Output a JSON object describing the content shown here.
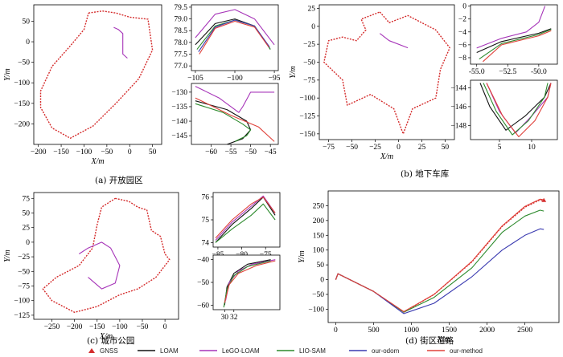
{
  "series_colors": {
    "GNSS": "#d42b2b",
    "LOAM": "#111111",
    "LeGO-LOAM": "#a634b8",
    "LIO-SAM": "#2c8a2c",
    "our-odom": "#3a3ab0",
    "our-method": "#e0413a"
  },
  "legend": {
    "entries": [
      {
        "name": "GNSS",
        "marker": "triangle"
      },
      {
        "name": "LOAM",
        "marker": "line"
      },
      {
        "name": "LeGO-LOAM",
        "marker": "line"
      },
      {
        "name": "LIO-SAM",
        "marker": "line"
      },
      {
        "name": "our-odom",
        "marker": "line"
      },
      {
        "name": "our-method",
        "marker": "line"
      }
    ]
  },
  "captions": {
    "a": "(a) 开放园区",
    "b": "(b) 地下车库",
    "c": "(c) 城市公园",
    "d": "(d) 街区道路"
  },
  "chart_data": [
    {
      "id": "a-main",
      "type": "line",
      "xlabel": "X/m",
      "ylabel": "Y/m",
      "xlim": [
        -210,
        70
      ],
      "ylim": [
        -250,
        90
      ],
      "xticks": [
        -200,
        -150,
        -100,
        -50,
        0,
        50
      ],
      "yticks": [
        50,
        0,
        -50,
        -100,
        -150,
        -200
      ],
      "series": [
        {
          "name": "GNSS",
          "x": [
            -90,
            -60,
            -30,
            0,
            40,
            50,
            20,
            -30,
            -80,
            -130,
            -170,
            -195,
            -195,
            -170,
            -130,
            -100,
            -90
          ],
          "y": [
            70,
            75,
            70,
            60,
            55,
            -20,
            -90,
            -150,
            -205,
            -235,
            -210,
            -160,
            -120,
            -60,
            -10,
            30,
            70
          ]
        },
        {
          "name": "LeGO-LOAM",
          "x": [
            -35,
            -25,
            -15,
            -15,
            -5
          ],
          "y": [
            35,
            30,
            20,
            -30,
            -40
          ]
        }
      ]
    },
    {
      "id": "a-inset-top",
      "type": "line",
      "xlim": [
        -105.5,
        -94.5
      ],
      "ylim": [
        76.8,
        79.6
      ],
      "xticks": [
        -105.0,
        -100.0,
        -95.0
      ],
      "yticks": [
        79.5,
        79.0,
        78.5,
        78.0,
        77.5,
        77.0
      ],
      "series": [
        {
          "name": "LOAM",
          "x": [
            -105,
            -102.5,
            -100,
            -97.5,
            -95.5
          ],
          "y": [
            77.9,
            78.8,
            79.0,
            78.7,
            77.7
          ]
        },
        {
          "name": "LeGO-LOAM",
          "x": [
            -105,
            -102.5,
            -100,
            -97.5,
            -95
          ],
          "y": [
            78.2,
            79.2,
            79.4,
            79.0,
            77.9
          ]
        },
        {
          "name": "LIO-SAM",
          "x": [
            -104.8,
            -102.5,
            -100,
            -97.5,
            -95.5
          ],
          "y": [
            77.7,
            78.7,
            78.95,
            78.7,
            77.7
          ]
        },
        {
          "name": "our-odom",
          "x": [
            -104.6,
            -102.5,
            -100,
            -97.5,
            -95.6
          ],
          "y": [
            77.6,
            78.65,
            78.95,
            78.7,
            77.8
          ]
        },
        {
          "name": "our-method",
          "x": [
            -104.5,
            -102.5,
            -100,
            -97.5,
            -95.7
          ],
          "y": [
            77.5,
            78.6,
            78.9,
            78.65,
            77.8
          ]
        }
      ]
    },
    {
      "id": "a-inset-bottom",
      "type": "line",
      "xlim": [
        -65,
        -43
      ],
      "ylim": [
        -148,
        -127
      ],
      "xticks": [
        -60,
        -55,
        -50,
        -45
      ],
      "yticks": [
        -130,
        -135,
        -140,
        -145
      ],
      "series": [
        {
          "name": "LOAM",
          "x": [
            -64,
            -56,
            -51,
            -50,
            -52,
            -56
          ],
          "y": [
            -133,
            -136,
            -140,
            -143,
            -146,
            -148
          ]
        },
        {
          "name": "LeGO-LOAM",
          "x": [
            -64,
            -58,
            -53,
            -52,
            -50,
            -44
          ],
          "y": [
            -128,
            -132,
            -137,
            -135,
            -130,
            -130
          ]
        },
        {
          "name": "LIO-SAM",
          "x": [
            -64,
            -57,
            -52,
            -50,
            -51,
            -54
          ],
          "y": [
            -134,
            -137,
            -141,
            -143,
            -145,
            -147
          ]
        },
        {
          "name": "our-method",
          "x": [
            -64,
            -55,
            -48,
            -44
          ],
          "y": [
            -132,
            -138,
            -142,
            -147
          ]
        }
      ]
    },
    {
      "id": "b-main",
      "type": "line",
      "xlabel": "X/m",
      "ylabel": "Y/m",
      "xlim": [
        -85,
        60
      ],
      "ylim": [
        -158,
        30
      ],
      "xticks": [
        -75,
        -50,
        -25,
        0,
        25,
        50
      ],
      "yticks": [
        25,
        0,
        -25,
        -50,
        -75,
        -100,
        -125,
        -150
      ],
      "series": [
        {
          "name": "GNSS",
          "x": [
            -20,
            -10,
            10,
            40,
            55,
            45,
            40,
            15,
            5,
            -5,
            -30,
            -55,
            -60,
            -80,
            -75,
            -60,
            -45,
            -35,
            -40,
            -20
          ],
          "y": [
            20,
            5,
            15,
            -5,
            -30,
            -60,
            -100,
            -115,
            -150,
            -115,
            -95,
            -110,
            -75,
            -50,
            -20,
            -15,
            -20,
            -5,
            10,
            20
          ]
        },
        {
          "name": "LeGO-LOAM",
          "x": [
            -20,
            -10,
            10
          ],
          "y": [
            -10,
            -20,
            -30
          ]
        }
      ]
    },
    {
      "id": "b-inset-top",
      "type": "line",
      "xlim": [
        -55.5,
        -48.5
      ],
      "ylim": [
        -9,
        0.2
      ],
      "xticks": [
        -55.0,
        -52.5,
        -50.0
      ],
      "yticks": [
        0,
        -2,
        -4,
        -6,
        -8
      ],
      "series": [
        {
          "name": "LOAM",
          "x": [
            -55,
            -53,
            -50,
            -49
          ],
          "y": [
            -7.2,
            -5.5,
            -4.2,
            -3.5
          ]
        },
        {
          "name": "LeGO-LOAM",
          "x": [
            -55,
            -53,
            -51,
            -50,
            -49.5
          ],
          "y": [
            -6.5,
            -5.0,
            -4.0,
            -2.5,
            0
          ]
        },
        {
          "name": "LIO-SAM",
          "x": [
            -54.8,
            -53,
            -50,
            -49
          ],
          "y": [
            -8.2,
            -5.8,
            -4.4,
            -3.6
          ]
        },
        {
          "name": "our-method",
          "x": [
            -54.5,
            -53,
            -50,
            -49
          ],
          "y": [
            -8.6,
            -6.0,
            -4.6,
            -3.8
          ]
        }
      ]
    },
    {
      "id": "b-inset-bottom",
      "type": "line",
      "xlim": [
        0.5,
        14
      ],
      "ylim": [
        -149.5,
        -143.2
      ],
      "xticks": [
        5,
        10
      ],
      "yticks": [
        -144,
        -146,
        -148
      ],
      "series": [
        {
          "name": "LOAM",
          "x": [
            2,
            3.5,
            6,
            9,
            12,
            13
          ],
          "y": [
            -143.5,
            -146,
            -148.5,
            -147,
            -145,
            -143.5
          ]
        },
        {
          "name": "LeGO-LOAM",
          "x": [
            3,
            5,
            7.5,
            10,
            12.5,
            13
          ],
          "y": [
            -143.5,
            -146.5,
            -148.8,
            -147,
            -145,
            -143.5
          ]
        },
        {
          "name": "LIO-SAM",
          "x": [
            2.5,
            4.5,
            7,
            9.5,
            12,
            12.5
          ],
          "y": [
            -143.5,
            -146.5,
            -149,
            -147.5,
            -145,
            -143.5
          ]
        },
        {
          "name": "our-method",
          "x": [
            3,
            5.5,
            8,
            10.5,
            12.5,
            13
          ],
          "y": [
            -143.5,
            -147,
            -149.2,
            -147.5,
            -145,
            -143.5
          ]
        }
      ]
    },
    {
      "id": "c-main",
      "type": "line",
      "xlabel": "X/m",
      "ylabel": "Y/m",
      "xlim": [
        -290,
        30
      ],
      "ylim": [
        -132,
        85
      ],
      "xticks": [
        -250,
        -200,
        -150,
        -100,
        -50,
        0
      ],
      "yticks": [
        75,
        50,
        25,
        0,
        -25,
        -50,
        -75,
        -100,
        -125
      ],
      "series": [
        {
          "name": "GNSS",
          "x": [
            -110,
            -80,
            -60,
            -40,
            -30,
            -10,
            0,
            10,
            -20,
            -60,
            -100,
            -150,
            -200,
            -250,
            -270,
            -240,
            -190,
            -160,
            -150,
            -140,
            -110
          ],
          "y": [
            75,
            70,
            60,
            55,
            20,
            10,
            -20,
            -30,
            -60,
            -80,
            -90,
            -110,
            -120,
            -100,
            -80,
            -60,
            -40,
            -10,
            30,
            60,
            75
          ]
        },
        {
          "name": "LeGO-LOAM",
          "x": [
            -190,
            -170,
            -140,
            -120,
            -100,
            -110,
            -140,
            -170
          ],
          "y": [
            -20,
            -10,
            0,
            -10,
            -40,
            -70,
            -80,
            -60
          ]
        }
      ]
    },
    {
      "id": "c-inset-top",
      "type": "line",
      "xlim": [
        -86,
        -72
      ],
      "ylim": [
        73.8,
        76.2
      ],
      "xticks": [
        -85,
        -80,
        -75
      ],
      "yticks": [
        76,
        75,
        74
      ],
      "series": [
        {
          "name": "LOAM",
          "x": [
            -85.5,
            -82,
            -78,
            -75.5,
            -73
          ],
          "y": [
            74.0,
            74.8,
            75.5,
            76.0,
            75.2
          ]
        },
        {
          "name": "LeGO-LOAM",
          "x": [
            -85.5,
            -82,
            -78,
            -75.5,
            -73
          ],
          "y": [
            74.1,
            74.9,
            75.6,
            76.05,
            75.3
          ]
        },
        {
          "name": "LIO-SAM",
          "x": [
            -85.5,
            -82,
            -78,
            -75.5,
            -73
          ],
          "y": [
            74.0,
            74.6,
            75.2,
            75.7,
            75.0
          ]
        },
        {
          "name": "our-method",
          "x": [
            -85.5,
            -82,
            -78,
            -75.5,
            -73
          ],
          "y": [
            74.2,
            75.0,
            75.7,
            76.0,
            75.3
          ]
        }
      ]
    },
    {
      "id": "c-inset-bottom",
      "type": "line",
      "xlim": [
        27.5,
        42
      ],
      "ylim": [
        -62,
        -38
      ],
      "xticks": [
        30,
        32
      ],
      "yticks": [
        -40,
        -50,
        -60
      ],
      "series": [
        {
          "name": "LOAM",
          "x": [
            30,
            30.5,
            32,
            35,
            40
          ],
          "y": [
            -60,
            -52,
            -46,
            -42,
            -40
          ]
        },
        {
          "name": "LeGO-LOAM",
          "x": [
            30.2,
            31,
            33,
            36,
            41
          ],
          "y": [
            -58,
            -50,
            -45,
            -42,
            -40
          ]
        },
        {
          "name": "LIO-SAM",
          "x": [
            29.8,
            30.5,
            32,
            35,
            40
          ],
          "y": [
            -61,
            -53,
            -47,
            -43,
            -40.5
          ]
        },
        {
          "name": "our-method",
          "x": [
            30,
            31,
            33,
            37,
            41
          ],
          "y": [
            -59,
            -51,
            -46,
            -42.5,
            -40.5
          ]
        }
      ]
    },
    {
      "id": "d-main",
      "type": "line",
      "xlabel": "X/m",
      "ylabel": "Y/m",
      "xlim": [
        -100,
        2950
      ],
      "ylim": [
        -145,
        300
      ],
      "xticks": [
        0,
        500,
        1000,
        1500,
        2000,
        2500
      ],
      "yticks": [
        250,
        200,
        150,
        100,
        50,
        0,
        -50,
        -100
      ],
      "series": [
        {
          "name": "GNSS",
          "x": [
            0,
            30,
            500,
            900,
            1300,
            1800,
            2200,
            2500,
            2700,
            2750
          ],
          "y": [
            0,
            20,
            -40,
            -110,
            -50,
            60,
            180,
            245,
            270,
            268
          ]
        },
        {
          "name": "LIO-SAM",
          "x": [
            0,
            30,
            500,
            900,
            1300,
            1800,
            2200,
            2500,
            2700,
            2750
          ],
          "y": [
            0,
            20,
            -40,
            -110,
            -60,
            40,
            160,
            215,
            235,
            232
          ]
        },
        {
          "name": "our-odom",
          "x": [
            0,
            30,
            500,
            900,
            1300,
            1800,
            2200,
            2500,
            2700,
            2750
          ],
          "y": [
            0,
            20,
            -40,
            -115,
            -80,
            10,
            100,
            150,
            172,
            170
          ]
        },
        {
          "name": "our-method",
          "x": [
            0,
            30,
            500,
            900,
            1300,
            1800,
            2200,
            2500,
            2700,
            2750
          ],
          "y": [
            0,
            20,
            -40,
            -108,
            -50,
            62,
            182,
            248,
            272,
            270
          ]
        }
      ]
    }
  ]
}
